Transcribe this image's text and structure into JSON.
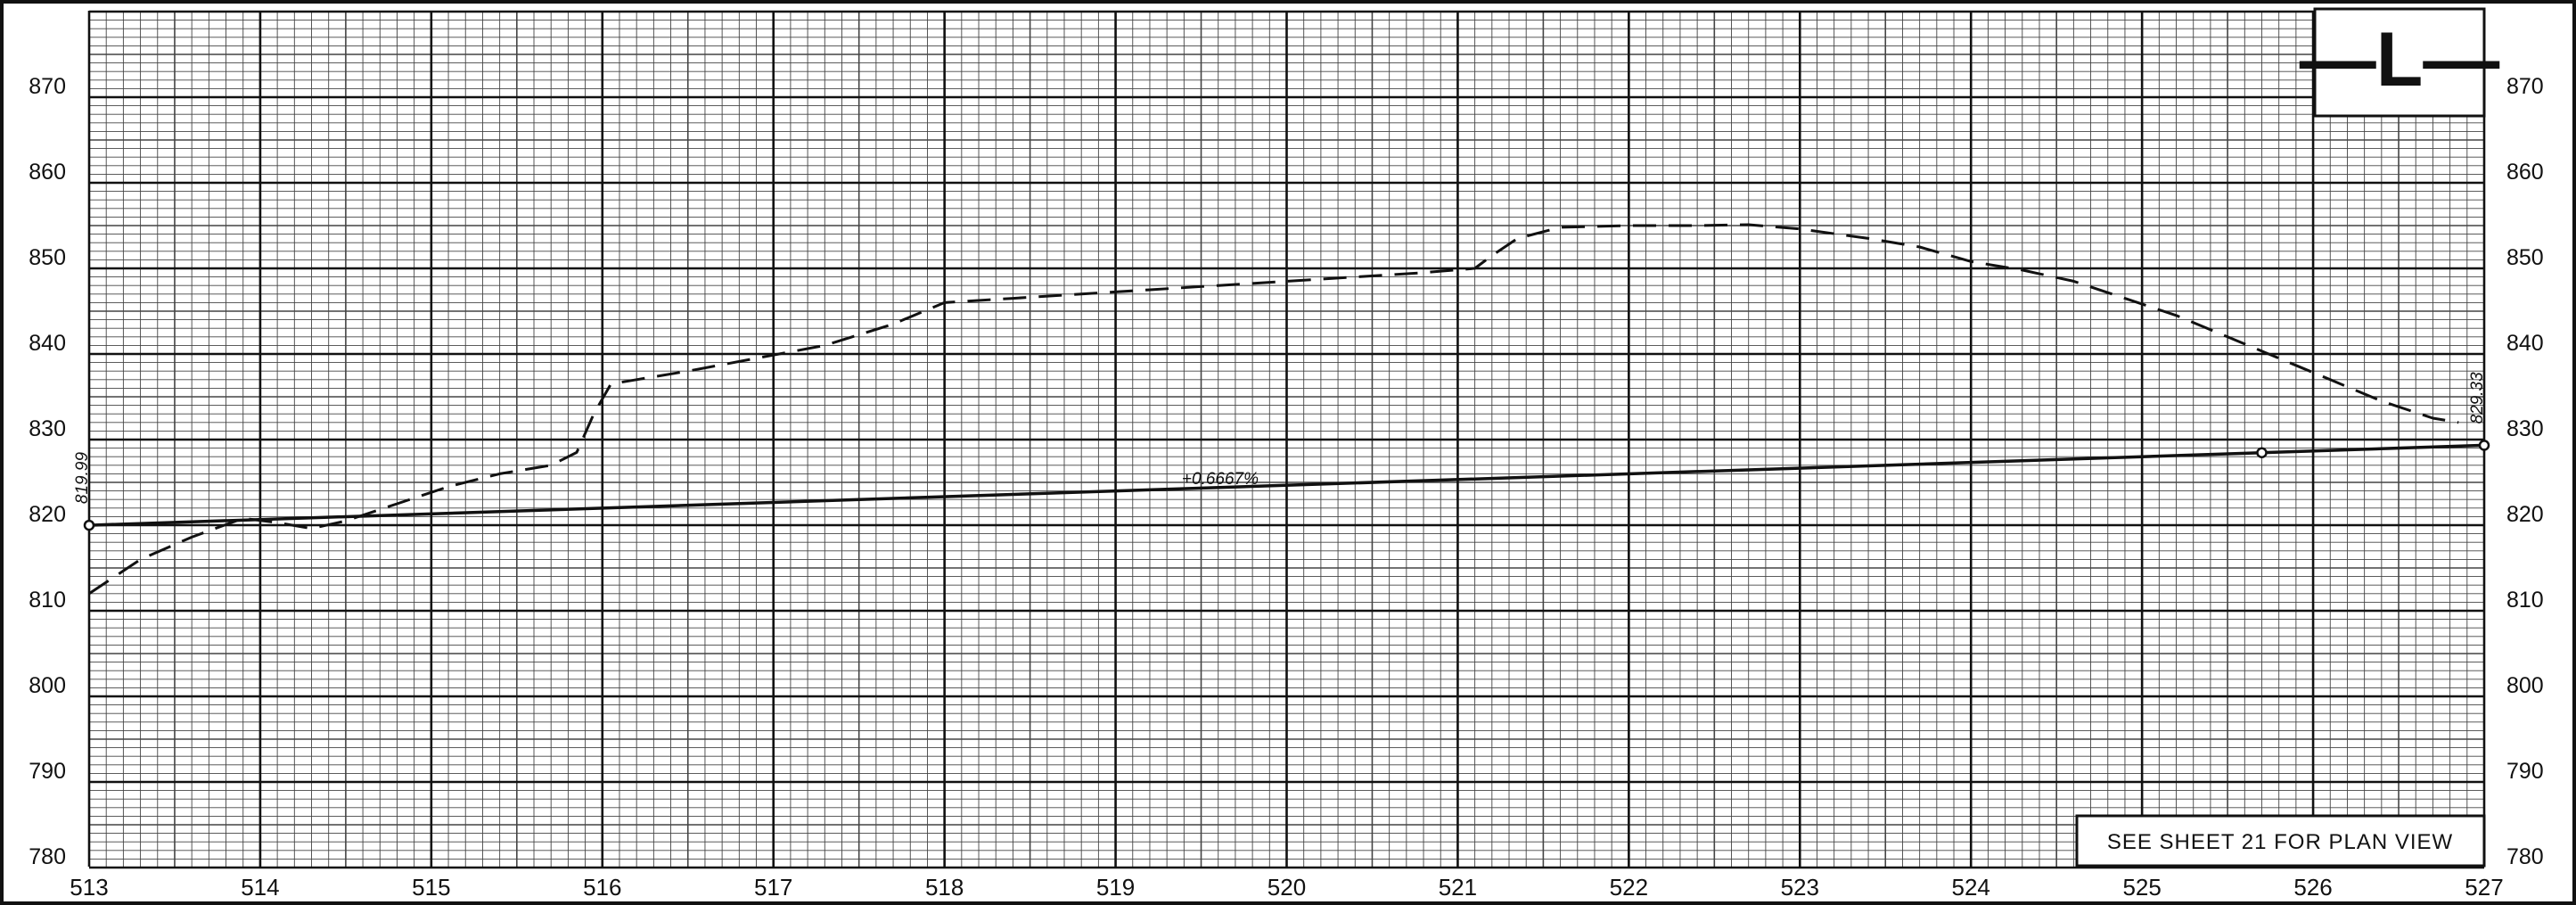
{
  "chart_data": {
    "type": "line",
    "title": "",
    "xlabel": "",
    "ylabel": "",
    "xlim": [
      513,
      527
    ],
    "ylim": [
      780,
      880
    ],
    "x_ticks": [
      "513",
      "514",
      "515",
      "516",
      "517",
      "518",
      "519",
      "520",
      "521",
      "522",
      "523",
      "524",
      "525",
      "526",
      "527"
    ],
    "y_ticks_left": [
      "870",
      "860",
      "850",
      "840",
      "830",
      "820",
      "810",
      "800",
      "790",
      "780"
    ],
    "y_ticks_right": [
      "870",
      "860",
      "850",
      "840",
      "830",
      "820",
      "810",
      "800",
      "790",
      "780"
    ],
    "grid": true,
    "series": [
      {
        "style": "dashed",
        "x": [
          513.0,
          513.3,
          513.6,
          513.9,
          514.1,
          514.3,
          514.5,
          514.8,
          515.1,
          515.4,
          515.7,
          515.85,
          515.95,
          516.05,
          516.2,
          516.5,
          516.9,
          517.3,
          517.7,
          518.0,
          518.4,
          518.8,
          519.2,
          519.6,
          520.0,
          520.4,
          520.8,
          521.1,
          521.2,
          521.35,
          521.6,
          522.0,
          522.4,
          522.7,
          523.0,
          523.4,
          523.7,
          524.0,
          524.3,
          524.6,
          524.9,
          525.2,
          525.5,
          525.8,
          526.1,
          526.4,
          526.7,
          526.85
        ],
        "y": [
          812,
          816,
          818.6,
          820.8,
          820.3,
          819.6,
          820.5,
          822.5,
          824.5,
          826,
          827,
          828.5,
          833,
          836.5,
          837,
          838,
          839.5,
          841,
          843.5,
          846,
          846.5,
          847,
          847.5,
          848,
          848.5,
          849,
          849.5,
          850,
          851.5,
          853.5,
          854.8,
          855,
          855,
          855.1,
          854.6,
          853.5,
          852.5,
          850.8,
          849.8,
          848.5,
          846.5,
          844.5,
          842,
          839.5,
          837,
          834.5,
          832.5,
          832
        ]
      },
      {
        "style": "solid",
        "x": [
          513.0,
          527.0
        ],
        "y": [
          819.99,
          829.33
        ]
      }
    ],
    "annotations": [
      {
        "text": "819.99",
        "x": 513.0,
        "y": 819.99
      },
      {
        "text": "829.33",
        "x": 527.0,
        "y": 829.33
      },
      {
        "text": "+0.6667%",
        "x": 519.7,
        "y": 824.6
      }
    ]
  },
  "title_block": {
    "label": "—L—"
  },
  "note": {
    "text": "SEE  SHEET  21  FOR  PLAN   VIEW"
  }
}
